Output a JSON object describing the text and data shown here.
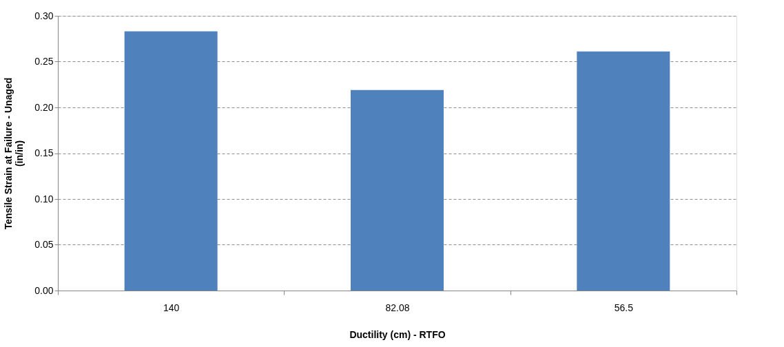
{
  "chart_data": {
    "type": "bar",
    "xlabel": "Ductility (cm) - RTFO",
    "ylabel": "Tensile Strain at Failure - Unaged\n(in/in)",
    "categories": [
      "140",
      "82.08",
      "56.5"
    ],
    "values": [
      0.283,
      0.219,
      0.261
    ],
    "color": "#4f81bd",
    "ylim": [
      0,
      0.3
    ],
    "yticks": [
      {
        "value": 0,
        "label": "0.00"
      },
      {
        "value": 0.05,
        "label": "0.05"
      },
      {
        "value": 0.1,
        "label": "0.10"
      },
      {
        "value": 0.15,
        "label": "0.15"
      },
      {
        "value": 0.2,
        "label": "0.20"
      },
      {
        "value": 0.25,
        "label": "0.25"
      },
      {
        "value": 0.3,
        "label": "0.30"
      }
    ],
    "grid": "y"
  }
}
